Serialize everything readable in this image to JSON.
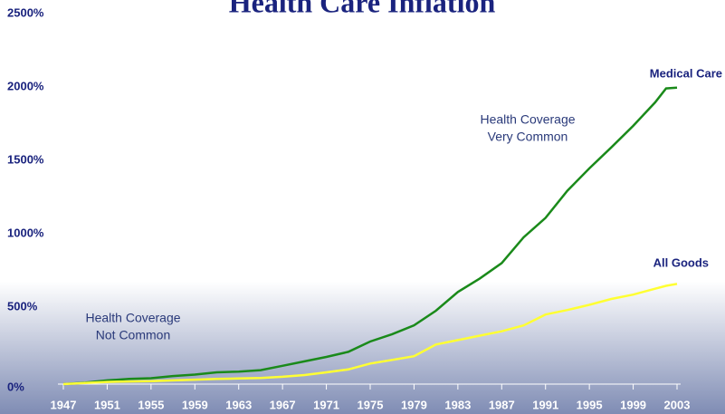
{
  "chart_data": {
    "type": "line",
    "title": "Health Care Inflation",
    "x": [
      1947,
      1949,
      1951,
      1953,
      1955,
      1957,
      1959,
      1961,
      1963,
      1965,
      1967,
      1969,
      1971,
      1973,
      1975,
      1977,
      1979,
      1981,
      1983,
      1985,
      1987,
      1989,
      1991,
      1993,
      1995,
      1997,
      1999,
      2001,
      2002,
      2003
    ],
    "series": [
      {
        "name": "Medical Care",
        "color": "#1a8a1a",
        "values": [
          0,
          10,
          25,
          35,
          40,
          55,
          65,
          80,
          85,
          95,
          125,
          155,
          185,
          220,
          290,
          340,
          400,
          500,
          628,
          720,
          825,
          1000,
          1133,
          1318,
          1470,
          1613,
          1760,
          1920,
          2015,
          2020
        ]
      },
      {
        "name": "All Goods",
        "color": "#ffff33",
        "values": [
          0,
          8,
          15,
          18,
          20,
          25,
          30,
          35,
          38,
          42,
          50,
          62,
          80,
          100,
          140,
          165,
          190,
          270,
          300,
          330,
          360,
          400,
          474,
          505,
          540,
          580,
          610,
          650,
          670,
          683
        ]
      }
    ],
    "xlim": [
      1947,
      2003
    ],
    "xticks": [
      1947,
      1951,
      1955,
      1959,
      1963,
      1967,
      1971,
      1975,
      1979,
      1983,
      1987,
      1991,
      1995,
      1999,
      2003
    ],
    "ylim": [
      0,
      2500
    ],
    "yticks": [
      {
        "value": 0,
        "label": "0%"
      },
      {
        "value": 500,
        "label": "500%"
      },
      {
        "value": 1000,
        "label": "1000%"
      },
      {
        "value": 1500,
        "label": "1500%"
      },
      {
        "value": 2000,
        "label": "2000%"
      },
      {
        "value": 2500,
        "label": "2500%"
      }
    ],
    "annotations": [
      {
        "lines": [
          "Health Coverage",
          "Very Common"
        ]
      },
      {
        "lines": [
          "Health Coverage",
          "Not Common"
        ]
      }
    ]
  }
}
